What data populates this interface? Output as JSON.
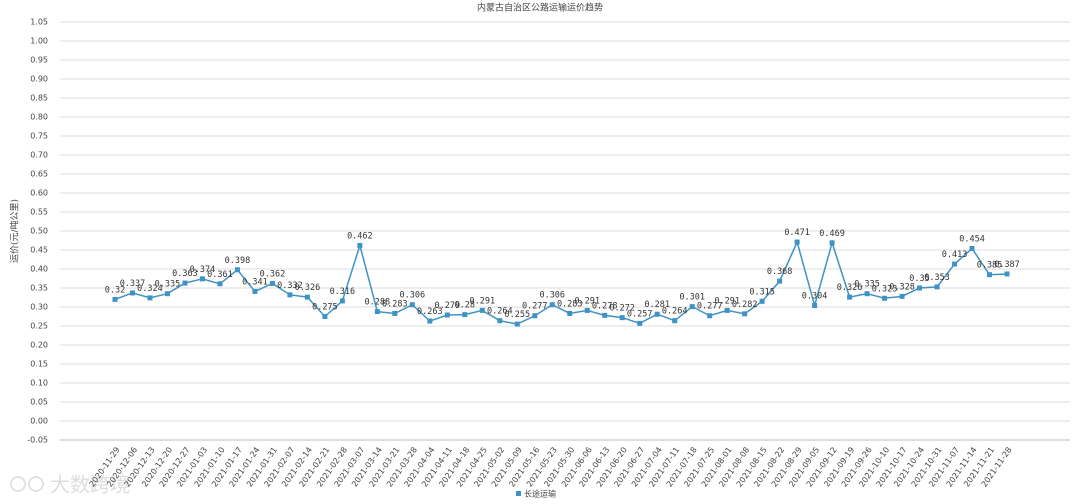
{
  "chart_data": {
    "type": "line",
    "title": "内蒙古自治区公路运输运价趋势",
    "y_label": "运价(元/吨公里)",
    "watermark": "大数跨境",
    "categories": [
      "2020-11-29",
      "2020-12-06",
      "2020-12-13",
      "2020-12-20",
      "2020-12-27",
      "2021-01-03",
      "2021-01-10",
      "2021-01-17",
      "2021-01-24",
      "2021-01-31",
      "2021-02-07",
      "2021-02-14",
      "2021-02-21",
      "2021-02-28",
      "2021-03-07",
      "2021-03-14",
      "2021-03-21",
      "2021-03-28",
      "2021-04-04",
      "2021-04-11",
      "2021-04-18",
      "2021-04-25",
      "2021-05-02",
      "2021-05-09",
      "2021-05-16",
      "2021-05-23",
      "2021-05-30",
      "2021-06-06",
      "2021-06-13",
      "2021-06-20",
      "2021-06-27",
      "2021-07-04",
      "2021-07-11",
      "2021-07-18",
      "2021-07-25",
      "2021-08-01",
      "2021-08-08",
      "2021-08-15",
      "2021-08-22",
      "2021-08-29",
      "2021-09-05",
      "2021-09-12",
      "2021-09-19",
      "2021-09-26",
      "2021-10-10",
      "2021-10-17",
      "2021-10-24",
      "2021-10-31",
      "2021-11-07",
      "2021-11-14",
      "2021-11-21",
      "2021-11-28"
    ],
    "series": [
      {
        "name": "长途运输",
        "color": "#3f93c4",
        "values": [
          0.32,
          0.337,
          0.324,
          0.335,
          0.363,
          0.374,
          0.361,
          0.398,
          0.341,
          0.362,
          0.332,
          0.326,
          0.275,
          0.316,
          0.462,
          0.288,
          0.283,
          0.306,
          0.263,
          0.279,
          0.28,
          0.291,
          0.264,
          0.255,
          0.277,
          0.306,
          0.283,
          0.291,
          0.278,
          0.272,
          0.257,
          0.281,
          0.264,
          0.301,
          0.277,
          0.291,
          0.282,
          0.315,
          0.368,
          0.471,
          0.304,
          0.469,
          0.326,
          0.335,
          0.323,
          0.328,
          0.35,
          0.353,
          0.413,
          0.454,
          0.385,
          0.387
        ]
      }
    ],
    "ylim": [
      -0.05,
      1.05
    ],
    "yticks": [
      -0.05,
      {
        "value": 0,
        "label": "0.00"
      },
      0.05,
      {
        "value": 0.1,
        "label": "0.10"
      },
      0.15,
      {
        "value": 0.2,
        "label": "0.20"
      },
      0.25,
      {
        "value": 0.3,
        "label": "0.30"
      },
      0.35,
      {
        "value": 0.4,
        "label": "0.40"
      },
      0.45,
      {
        "value": 0.5,
        "label": "0.50"
      },
      0.55,
      {
        "value": 0.6,
        "label": "0.60"
      },
      0.65,
      {
        "value": 0.7,
        "label": "0.70"
      },
      0.75,
      {
        "value": 0.8,
        "label": "0.80"
      },
      0.85,
      {
        "value": 0.9,
        "label": "0.90"
      },
      0.95,
      {
        "value": 1,
        "label": "1.00"
      },
      1.05
    ],
    "grid": true,
    "legend": "bottom"
  }
}
